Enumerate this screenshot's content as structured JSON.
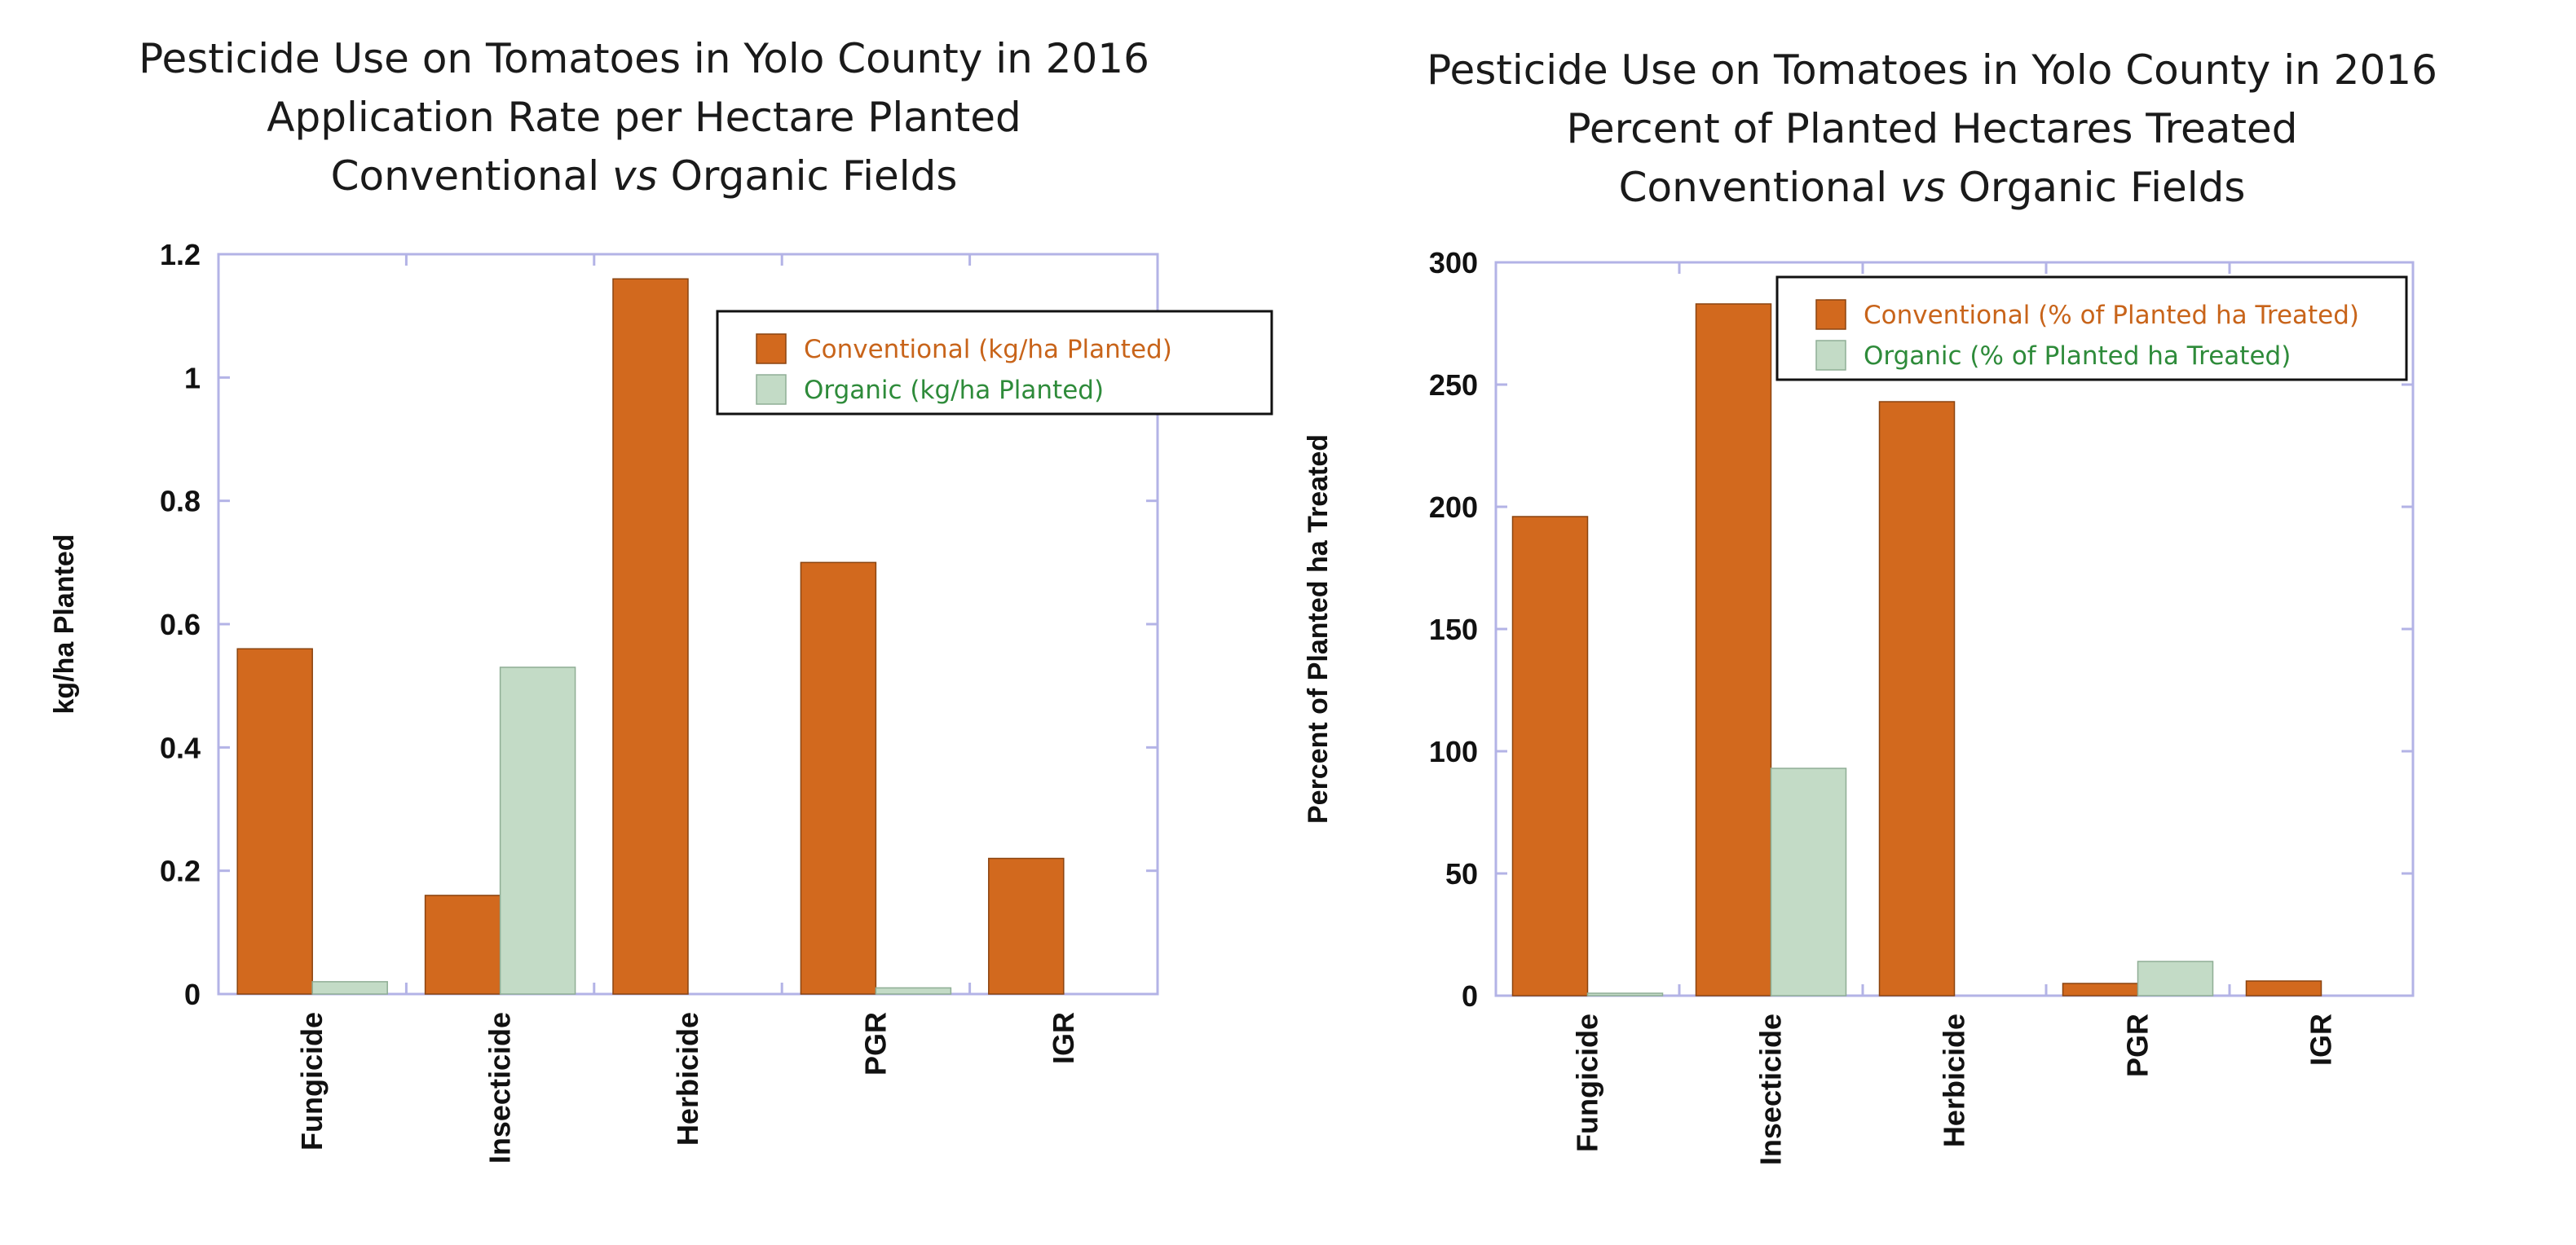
{
  "colors": {
    "conventional": "#D2691E",
    "organic": "#C3DBC6",
    "frame": "#B3B3E6",
    "conventional_text": "#C8641A",
    "organic_text": "#2E8B3A"
  },
  "chart_data": [
    {
      "type": "bar",
      "title_lines": [
        "Pesticide Use on Tomatoes in Yolo County in 2016",
        "Application Rate per Hectare Planted"
      ],
      "subtitle_prefix": "Conventional ",
      "subtitle_italic": "vs",
      "subtitle_suffix": " Organic Fields",
      "categories": [
        "Fungicide",
        "Insecticide",
        "Herbicide",
        "PGR",
        "IGR"
      ],
      "series": [
        {
          "name": "Conventional (kg/ha Planted)",
          "values": [
            0.56,
            0.16,
            1.16,
            0.7,
            0.22
          ]
        },
        {
          "name": "Organic (kg/ha Planted)",
          "values": [
            0.02,
            0.53,
            0,
            0.01,
            0
          ]
        }
      ],
      "ylabel": "kg/ha Planted",
      "xlabel": "",
      "ylim": [
        0,
        1.2
      ],
      "yticks": [
        0,
        0.2,
        0.4,
        0.6,
        0.8,
        1,
        1.2
      ],
      "ytick_labels": [
        "0",
        "0.2",
        "0.4",
        "0.6",
        "0.8",
        "1",
        "1.2"
      ],
      "legend_position": "top-right"
    },
    {
      "type": "bar",
      "title_lines": [
        "Pesticide Use on Tomatoes in Yolo County in 2016",
        "Percent of Planted Hectares Treated"
      ],
      "subtitle_prefix": "Conventional ",
      "subtitle_italic": "vs",
      "subtitle_suffix": " Organic Fields",
      "categories": [
        "Fungicide",
        "Insecticide",
        "Herbicide",
        "PGR",
        "IGR"
      ],
      "series": [
        {
          "name": "Conventional (% of Planted ha Treated)",
          "values": [
            196,
            283,
            243,
            5,
            6
          ]
        },
        {
          "name": "Organic (% of Planted ha Treated)",
          "values": [
            1,
            93,
            0,
            14,
            0
          ]
        }
      ],
      "ylabel": "Percent of Planted ha Treated",
      "xlabel": "",
      "ylim": [
        0,
        300
      ],
      "yticks": [
        0,
        50,
        100,
        150,
        200,
        250,
        300
      ],
      "ytick_labels": [
        "0",
        "50",
        "100",
        "150",
        "200",
        "250",
        "300"
      ],
      "legend_position": "top-right"
    }
  ]
}
